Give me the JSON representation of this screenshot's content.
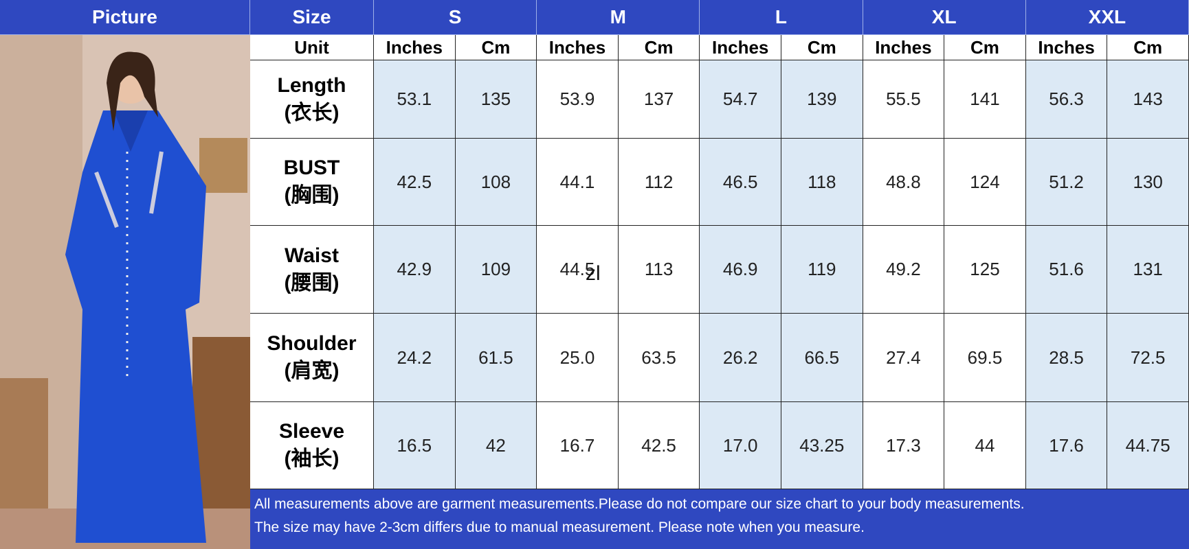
{
  "header": {
    "picture": "Picture",
    "size": "Size",
    "sizes": [
      "S",
      "M",
      "L",
      "XL",
      "XXL"
    ]
  },
  "unit_row": {
    "label": "Unit",
    "units": [
      [
        "Inches",
        "Cm"
      ],
      [
        "Inches",
        "Cm"
      ],
      [
        "Inches",
        "Cm"
      ],
      [
        "Inches",
        "Cm"
      ],
      [
        "Inches",
        "Cm"
      ]
    ]
  },
  "rows": [
    {
      "label": "Length",
      "label_cn": "(衣长)",
      "values": [
        "53.1",
        "135",
        "53.9",
        "137",
        "54.7",
        "139",
        "55.5",
        "141",
        "56.3",
        "143"
      ]
    },
    {
      "label": "BUST",
      "label_cn": "(胸围)",
      "values": [
        "42.5",
        "108",
        "44.1",
        "112",
        "46.5",
        "118",
        "48.8",
        "124",
        "51.2",
        "130"
      ]
    },
    {
      "label": "Waist",
      "label_cn": "(腰围)",
      "values": [
        "42.9",
        "109",
        "44.5",
        "113",
        "46.9",
        "119",
        "49.2",
        "125",
        "51.6",
        "131"
      ]
    },
    {
      "label": "Shoulder",
      "label_cn": "(肩宽)",
      "values": [
        "24.2",
        "61.5",
        "25.0",
        "63.5",
        "26.2",
        "66.5",
        "27.4",
        "69.5",
        "28.5",
        "72.5"
      ]
    },
    {
      "label": "Sleeve",
      "label_cn": "(袖长)",
      "values": [
        "16.5",
        "42",
        "16.7",
        "42.5",
        "17.0",
        "43.25",
        "17.3",
        "44",
        "17.6",
        "44.75"
      ]
    }
  ],
  "notes": [
    "All measurements above are garment measurements.Please do not compare our size chart to your body measurements.",
    "The size may have 2-3cm differs due to manual measurement. Please note when you measure."
  ],
  "watermark": "zl"
}
